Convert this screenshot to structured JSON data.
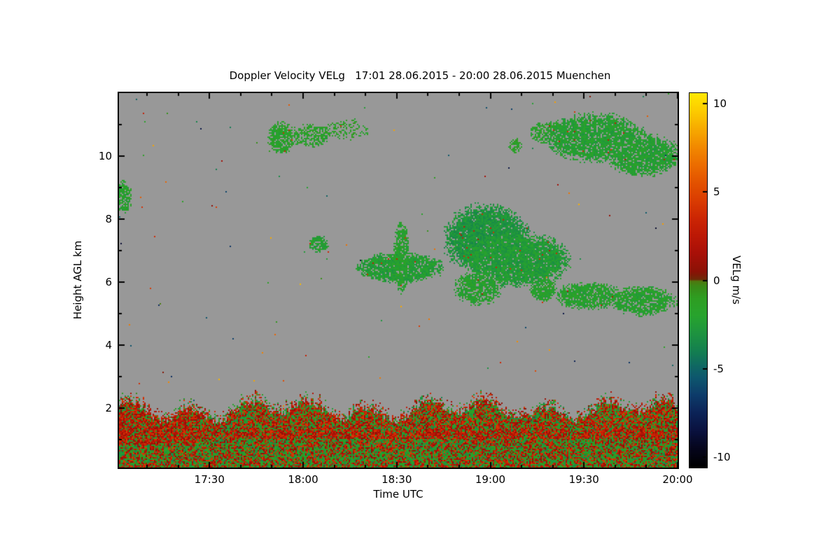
{
  "page": {
    "background": "#ffffff"
  },
  "chart_data": {
    "type": "heatmap",
    "title": "Doppler Velocity VELg   17:01 28.06.2015 - 20:00 28.06.2015 Muenchen",
    "xlabel": "Time UTC",
    "ylabel": "Height AGL km",
    "colorbar_label": "VELg m/s",
    "no_data_color": "#989898",
    "x_axis": {
      "range": [
        1,
        180
      ],
      "unit": "minutes after 17:00 UTC",
      "ticks": [
        {
          "t": 30,
          "label": "17:30"
        },
        {
          "t": 60,
          "label": "18:00"
        },
        {
          "t": 90,
          "label": "18:30"
        },
        {
          "t": 120,
          "label": "19:00"
        },
        {
          "t": 150,
          "label": "19:30"
        },
        {
          "t": 180,
          "label": "20:00"
        }
      ],
      "minor_step": 10
    },
    "y_axis": {
      "range": [
        0.1,
        12.0
      ],
      "unit": "km AGL",
      "ticks": [
        {
          "h": 2,
          "label": "2"
        },
        {
          "h": 4,
          "label": "4"
        },
        {
          "h": 6,
          "label": "6"
        },
        {
          "h": 8,
          "label": "8"
        },
        {
          "h": 10,
          "label": "10"
        }
      ],
      "minor_step": 1
    },
    "colorbar": {
      "range": [
        -10.6,
        10.6
      ],
      "unit": "m/s",
      "ticks": [
        {
          "v": 10,
          "label": "10"
        },
        {
          "v": 5,
          "label": "5"
        },
        {
          "v": 0,
          "label": "0"
        },
        {
          "v": -5,
          "label": "-5"
        },
        {
          "v": -10,
          "label": "-10"
        }
      ]
    },
    "colormap_stops": [
      [
        -10.6,
        "#000000"
      ],
      [
        -9.5,
        "#06061e"
      ],
      [
        -8.5,
        "#0a1240"
      ],
      [
        -7.5,
        "#0c2458"
      ],
      [
        -6.5,
        "#0d3c6a"
      ],
      [
        -5.5,
        "#0e586e"
      ],
      [
        -4.8,
        "#106a62"
      ],
      [
        -4.0,
        "#148050"
      ],
      [
        -3.0,
        "#1e9440"
      ],
      [
        -2.0,
        "#28a42e"
      ],
      [
        -1.0,
        "#2f9e22"
      ],
      [
        -0.35,
        "#3a8a18"
      ],
      [
        -0.05,
        "#4f7a10"
      ],
      [
        0.05,
        "#6e2a08"
      ],
      [
        0.5,
        "#8c1206"
      ],
      [
        1.5,
        "#a81008"
      ],
      [
        2.5,
        "#bc1806"
      ],
      [
        3.5,
        "#cc2604"
      ],
      [
        4.5,
        "#da3c02"
      ],
      [
        5.5,
        "#e35200"
      ],
      [
        6.5,
        "#ec6c00"
      ],
      [
        7.5,
        "#f28800"
      ],
      [
        8.5,
        "#f7a800"
      ],
      [
        9.5,
        "#fcc900"
      ],
      [
        10.6,
        "#ffe800"
      ]
    ],
    "clouds": [
      {
        "t0": 0,
        "t1": 5,
        "h0": 8.2,
        "h1": 9.2,
        "v": -2.0,
        "p": 0.75
      },
      {
        "t0": 49,
        "t1": 57,
        "h0": 10.1,
        "h1": 11.05,
        "v": -1.8,
        "p": 0.8
      },
      {
        "t0": 56,
        "t1": 69,
        "h0": 10.3,
        "h1": 11.0,
        "v": -1.7,
        "p": 0.6
      },
      {
        "t0": 68,
        "t1": 81,
        "h0": 10.5,
        "h1": 11.15,
        "v": -1.5,
        "p": 0.3
      },
      {
        "t0": 62,
        "t1": 68,
        "h0": 6.95,
        "h1": 7.45,
        "v": -2.2,
        "p": 0.8
      },
      {
        "t0": 78,
        "t1": 104,
        "h0": 6.0,
        "h1": 6.9,
        "v": -2.4,
        "p": 0.9
      },
      {
        "t0": 89,
        "t1": 94,
        "h0": 5.75,
        "h1": 7.85,
        "v": -2.0,
        "p": 0.8
      },
      {
        "t0": 106,
        "t1": 132,
        "h0": 6.3,
        "h1": 8.4,
        "v": -2.9,
        "p": 0.93
      },
      {
        "t0": 112,
        "t1": 145,
        "h0": 5.9,
        "h1": 7.5,
        "v": -2.5,
        "p": 0.9
      },
      {
        "t0": 109,
        "t1": 123,
        "h0": 5.3,
        "h1": 6.3,
        "v": -2.0,
        "p": 0.75
      },
      {
        "t0": 133,
        "t1": 141,
        "h0": 5.4,
        "h1": 6.15,
        "v": -1.9,
        "p": 0.8
      },
      {
        "t0": 141,
        "t1": 162,
        "h0": 5.15,
        "h1": 5.95,
        "v": -2.0,
        "p": 0.82
      },
      {
        "t0": 159,
        "t1": 179,
        "h0": 4.95,
        "h1": 5.85,
        "v": -2.0,
        "p": 0.82
      },
      {
        "t0": 133,
        "t1": 147,
        "h0": 10.4,
        "h1": 11.1,
        "v": -1.8,
        "p": 0.7
      },
      {
        "t0": 139,
        "t1": 169,
        "h0": 9.85,
        "h1": 11.3,
        "v": -2.2,
        "p": 0.85
      },
      {
        "t0": 158,
        "t1": 180,
        "h0": 9.4,
        "h1": 10.65,
        "v": -2.2,
        "p": 0.85
      },
      {
        "t0": 126,
        "t1": 130,
        "h0": 10.1,
        "h1": 10.55,
        "v": -1.5,
        "p": 0.6
      }
    ],
    "boundary_layer": {
      "h_top_mean": 1.92,
      "h_top_amp1": 0.22,
      "h_top_amp2": 0.15,
      "green_range": [
        -3.8,
        -0.4
      ],
      "warm_range": [
        0.4,
        4.6
      ],
      "warm_frac_upper": 0.6,
      "warm_frac_lower": 0.46,
      "upper_split_km": 1.0,
      "band": {
        "h0": 1.02,
        "h1": 1.28,
        "extra_warm": 0.15
      },
      "left_patch": {
        "t0": 0,
        "t1": 26,
        "h0": 0.85,
        "h1": 1.9,
        "warm_frac": 0.78
      }
    },
    "speckle": {
      "p": 0.0012,
      "v_min": -9,
      "v_max": 9
    }
  }
}
